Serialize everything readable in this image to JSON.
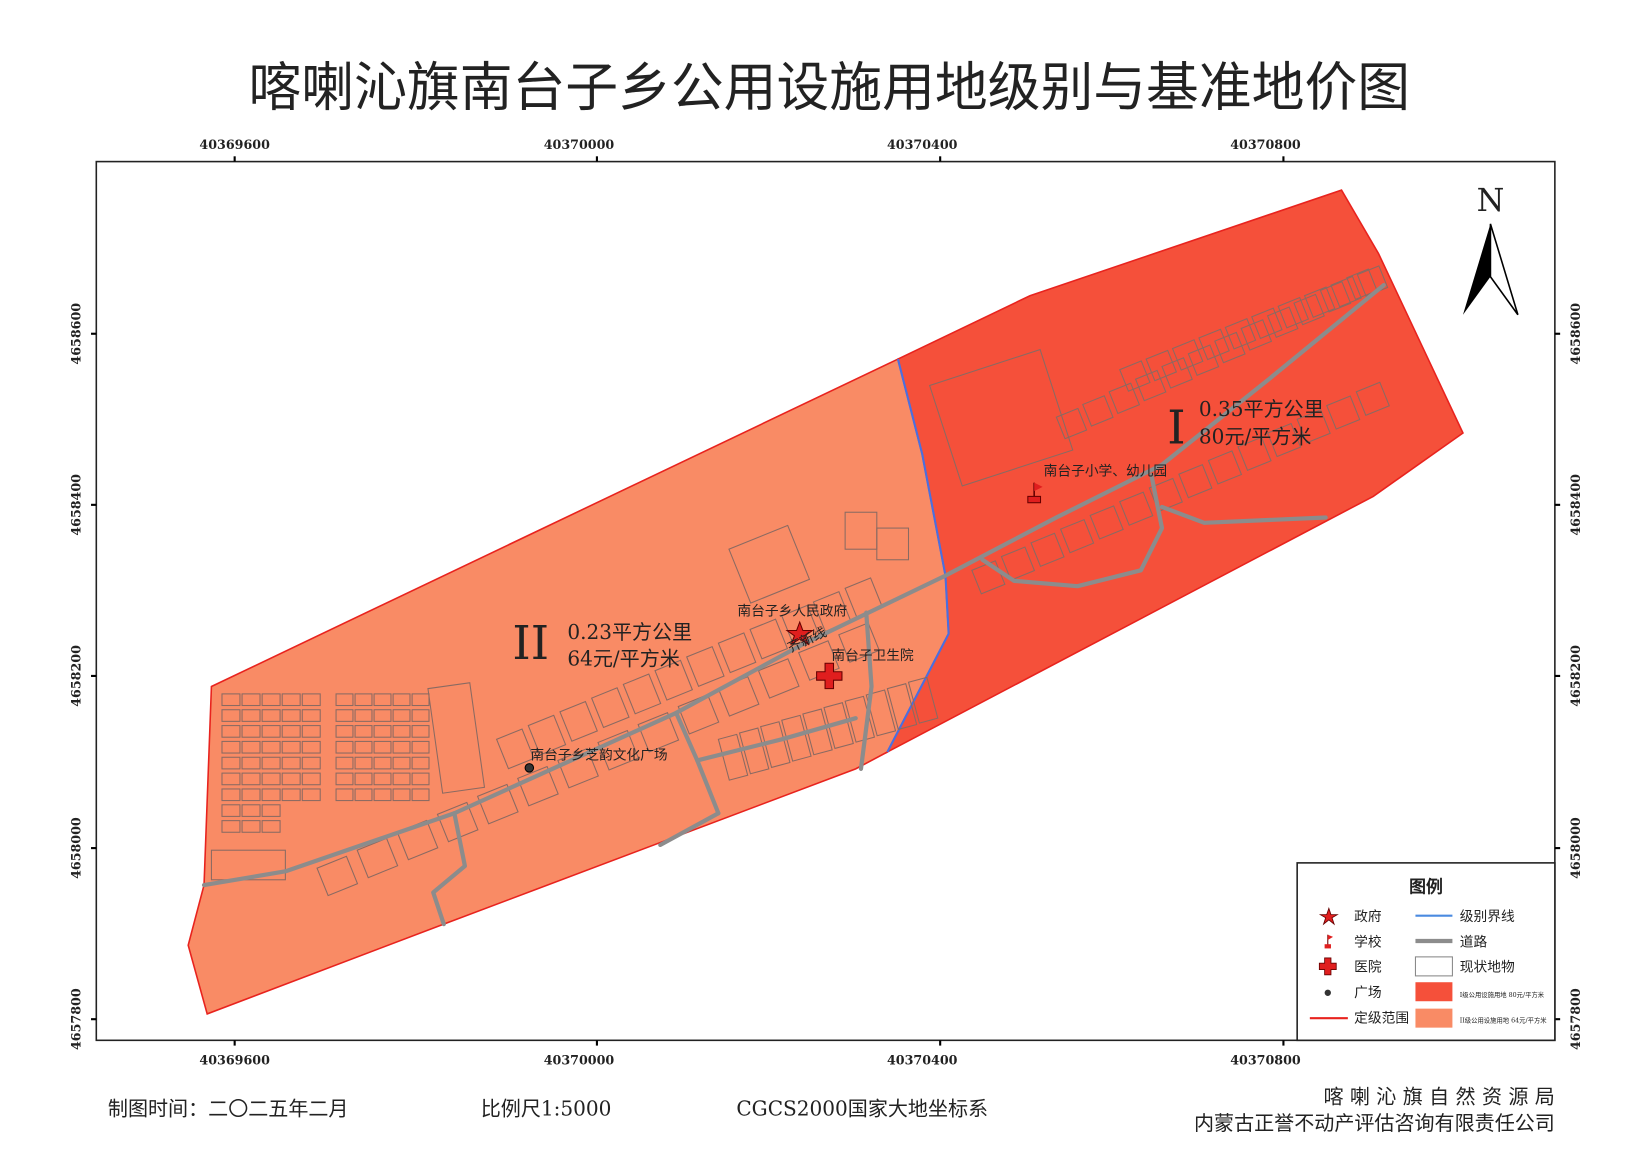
{
  "title": "喀喇沁旗南台子乡公用设施用地级别与基准地价图",
  "axes": {
    "x_ticks": [
      "40369600",
      "40370000",
      "40370400",
      "40370800"
    ],
    "y_ticks": [
      "4658600",
      "4658400",
      "4658200",
      "4658000",
      "4657800"
    ]
  },
  "zones": [
    {
      "grade": "I",
      "area": "0.35平方公里",
      "price": "80元/平方米",
      "color": "#f5503a"
    },
    {
      "grade": "II",
      "area": "0.23平方公里",
      "price": "64元/平方米",
      "color": "#f98b65"
    }
  ],
  "places": {
    "government": "南台子乡人民政府",
    "road": "齐新线",
    "hospital": "南台子卫生院",
    "school": "南台子小学、幼儿园",
    "plaza": "南台子乡芝韵文化广场"
  },
  "north_label": "N",
  "legend": {
    "title": "图例",
    "items": [
      {
        "label": "政府",
        "icon": "star-icon"
      },
      {
        "label": "学校",
        "icon": "flag-icon"
      },
      {
        "label": "医院",
        "icon": "red-cross-icon"
      },
      {
        "label": "广场",
        "icon": "dot-icon"
      },
      {
        "label": "定级范围",
        "icon": "red-line-icon"
      },
      {
        "label": "级别界线",
        "icon": "blue-line-icon"
      },
      {
        "label": "道路",
        "icon": "gray-line-icon"
      },
      {
        "label": "现状地物",
        "icon": "white-box-icon"
      },
      {
        "label": "I级公用设施用地 80元/平方米",
        "icon": "red-fill-icon"
      },
      {
        "label": "II级公用设施用地 64元/平方米",
        "icon": "orange-fill-icon"
      }
    ]
  },
  "footer": {
    "date": "制图时间：二〇二五年二月",
    "scale": "比例尺1:5000",
    "crs": "CGCS2000国家大地坐标系",
    "org1": "喀 喇 沁 旗 自 然 资 源 局",
    "org2": "内蒙古正誉不动产评估咨询有限责任公司"
  },
  "colors": {
    "boundary": "#e8231e",
    "grade_line": "#4a6fe0",
    "road": "#8c8c8c"
  }
}
